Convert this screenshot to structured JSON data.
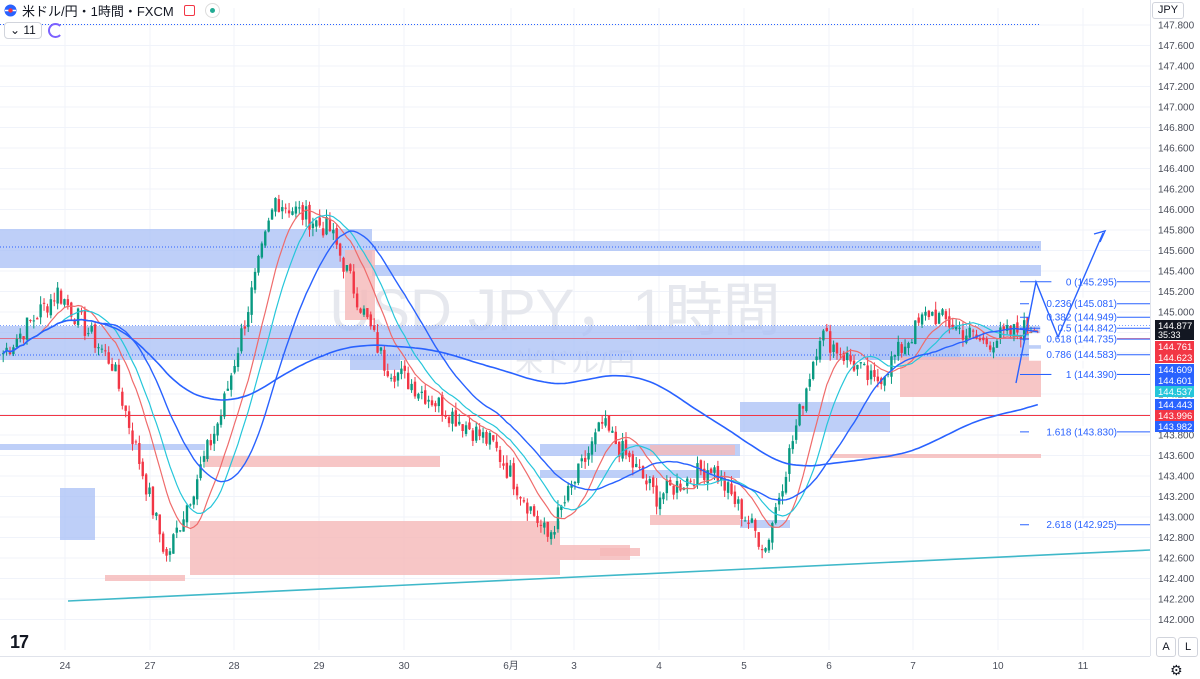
{
  "header": {
    "symbol_title": "米ドル/円・1時間・FXCM",
    "indicator_value": "11",
    "currency": "JPY",
    "autoscale_label": "A",
    "log_label": "L",
    "tv_logo": "17"
  },
  "watermark": {
    "line1": "USD JPY，1時間",
    "line2": "米ドル/円"
  },
  "colors": {
    "up": "#089981",
    "down": "#f23645",
    "blue_zone": "#a8bff5",
    "red_zone": "#f5b8b8",
    "trendline": "#3fb8c9",
    "fib": "#2962ff"
  },
  "chart_data": {
    "type": "candlestick",
    "y_axis": {
      "min": 142.0,
      "max": 147.9,
      "ticks": [
        "147.800",
        "147.600",
        "147.400",
        "147.200",
        "147.000",
        "146.800",
        "146.600",
        "146.400",
        "146.200",
        "146.000",
        "145.800",
        "145.600",
        "145.400",
        "145.200",
        "145.000",
        "144.800",
        "144.600",
        "144.400",
        "144.200",
        "144.000",
        "143.800",
        "143.600",
        "143.400",
        "143.200",
        "143.000",
        "142.800",
        "142.600",
        "142.400",
        "142.200",
        "142.000"
      ]
    },
    "x_axis": {
      "ticks": [
        "24",
        "27",
        "28",
        "29",
        "30",
        "6月",
        "3",
        "4",
        "5",
        "6",
        "7",
        "10",
        "11"
      ]
    },
    "fibonacci": [
      {
        "label": "0 (145.295)",
        "value": 145.295
      },
      {
        "label": "0.236 (145.081)",
        "value": 145.081
      },
      {
        "label": "0.382 (144.949)",
        "value": 144.949
      },
      {
        "label": "0.5 (144.842)",
        "value": 144.842
      },
      {
        "label": "0.618 (144.735)",
        "value": 144.735
      },
      {
        "label": "0.786 (144.583)",
        "value": 144.583
      },
      {
        "label": "1 (144.390)",
        "value": 144.39
      },
      {
        "label": "1.618 (143.830)",
        "value": 143.83
      },
      {
        "label": "2.618 (142.925)",
        "value": 142.925
      }
    ],
    "price_labels": [
      {
        "text": "144.877",
        "sub": "35:33",
        "value": 144.877,
        "color": "#131722"
      },
      {
        "text": "144.761",
        "value": 144.761,
        "color": "#f23645"
      },
      {
        "text": "144.623",
        "value": 144.623,
        "color": "#f23645"
      },
      {
        "text": "144.609",
        "value": 144.609,
        "color": "#2962ff"
      },
      {
        "text": "144.601",
        "value": 144.601,
        "color": "#2962ff"
      },
      {
        "text": "144.537",
        "value": 144.537,
        "color": "#26c6da"
      },
      {
        "text": "144.443",
        "value": 144.443,
        "color": "#2962ff"
      },
      {
        "text": "143.996",
        "value": 143.996,
        "color": "#f23645"
      },
      {
        "text": "143.982",
        "value": 143.982,
        "color": "#2962ff"
      }
    ],
    "key_closes": [
      144.6,
      145.2,
      144.5,
      142.6,
      144.0,
      146.1,
      145.8,
      144.5,
      144.1,
      143.7,
      142.8,
      143.9,
      143.2,
      143.5,
      142.7,
      144.8,
      144.3,
      145.0,
      144.7,
      144.88
    ]
  }
}
